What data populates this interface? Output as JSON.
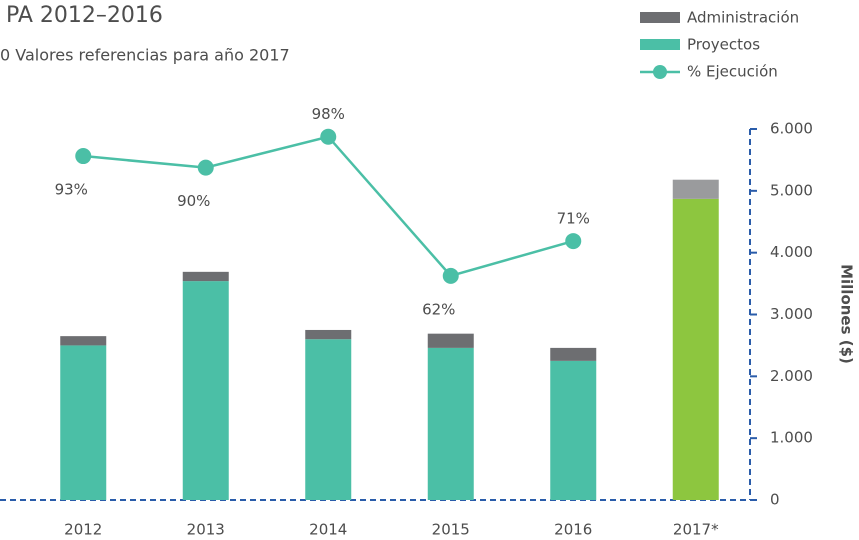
{
  "chart_data": {
    "type": "bar",
    "title": "PA 2012–2016",
    "subtitle": "0 Valores referencias para año 2017",
    "y_axis_label": "Millones ($)",
    "categories": [
      "2012",
      "2013",
      "2014",
      "2015",
      "2016",
      "2017*"
    ],
    "series": [
      {
        "name": "Proyectos",
        "type": "bar",
        "color": "#4bbfa6",
        "colors": [
          "#4bbfa6",
          "#4bbfa6",
          "#4bbfa6",
          "#4bbfa6",
          "#4bbfa6",
          "#8dc63f"
        ],
        "values": [
          2500,
          3540,
          2600,
          2460,
          2250,
          4870
        ]
      },
      {
        "name": "Administración",
        "type": "bar",
        "color": "#6d6e71",
        "colors": [
          "#6d6e71",
          "#6d6e71",
          "#6d6e71",
          "#6d6e71",
          "#6d6e71",
          "#9a9b9d"
        ],
        "values": [
          150,
          150,
          150,
          230,
          210,
          310
        ]
      },
      {
        "name": "% Ejecución",
        "type": "line",
        "axis": "y2",
        "color": "#4bbfa6",
        "values": [
          93,
          90,
          98,
          62,
          71,
          null
        ],
        "value_labels": [
          "93%",
          "90%",
          "98%",
          "62%",
          "71%",
          null
        ]
      }
    ],
    "ylim": [
      0,
      6000
    ],
    "yticks": [
      0,
      {
        "value": 1000,
        "label": "1.000"
      },
      {
        "value": 2000,
        "label": "2.000"
      },
      {
        "value": 3000,
        "label": "3.000"
      },
      {
        "value": 4000,
        "label": "4.000"
      },
      {
        "value": 5000,
        "label": "5.000"
      },
      {
        "value": 6000,
        "label": "6.000"
      }
    ],
    "y2lim": [
      4,
      100
    ],
    "axis_color": "#2a5caa",
    "legend": "top-right"
  }
}
